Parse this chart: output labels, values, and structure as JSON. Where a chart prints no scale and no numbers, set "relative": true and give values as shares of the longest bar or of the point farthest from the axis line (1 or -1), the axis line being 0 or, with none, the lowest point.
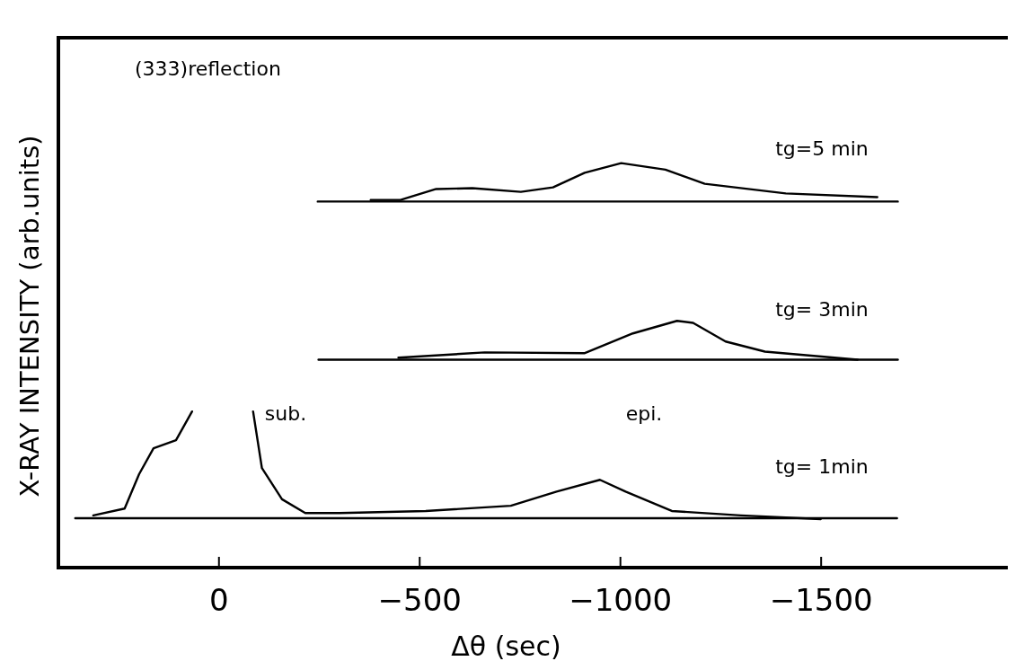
{
  "chart_data": {
    "type": "line",
    "relative": true,
    "xlabel": "Δθ  (sec)",
    "ylabel": "X-RAY INTENSITY (arb.units)",
    "xlim": [
      400,
      -1965
    ],
    "xticks": [
      0,
      -500,
      -1000,
      -1500
    ],
    "legend": false,
    "grid": false,
    "marker": "none",
    "line_style": "solid",
    "series": [
      {
        "color": "#000000",
        "x": [
          313,
          235,
          199,
          163,
          107,
          67,
          0,
          -85,
          -107,
          -157,
          -215,
          -300,
          -515,
          -727,
          -841,
          -949,
          -1013,
          -1128,
          -1300,
          -1499
        ],
        "values": [
          0.129,
          0.146,
          0.231,
          0.295,
          0.315,
          0.386,
          null,
          0.386,
          0.246,
          0.169,
          0.135,
          0.135,
          0.14,
          0.153,
          0.188,
          0.217,
          0.188,
          0.14,
          0.129,
          0.12
        ]
      },
      {
        "color": "#000000",
        "x": [
          358,
          -1689
        ],
        "values": [
          0.122,
          0.122
        ]
      },
      {
        "color": "#000000",
        "x": [
          -447,
          -662,
          -910,
          -1031,
          -1141,
          -1181,
          -1262,
          -1360,
          -1591
        ],
        "values": [
          0.519,
          0.532,
          0.53,
          0.579,
          0.61,
          0.605,
          0.559,
          0.534,
          0.514
        ]
      },
      {
        "color": "#000000",
        "x": [
          -248,
          -1691
        ],
        "values": [
          0.514,
          0.514
        ]
      },
      {
        "color": "#000000",
        "x": [
          -378,
          -452,
          -541,
          -631,
          -752,
          -832,
          -911,
          -1002,
          -1112,
          -1210,
          -1412,
          -1640
        ],
        "values": [
          0.909,
          0.909,
          0.936,
          0.938,
          0.929,
          0.94,
          0.976,
          1.0,
          0.984,
          0.949,
          0.925,
          0.916
        ]
      },
      {
        "color": "#000000",
        "x": [
          -246,
          -1691
        ],
        "values": [
          0.905,
          0.905
        ]
      }
    ],
    "annotations": [
      "(333)reflection",
      "tg=5 min",
      "tg= 3min",
      "tg= 1min",
      "sub.",
      "epi."
    ]
  }
}
